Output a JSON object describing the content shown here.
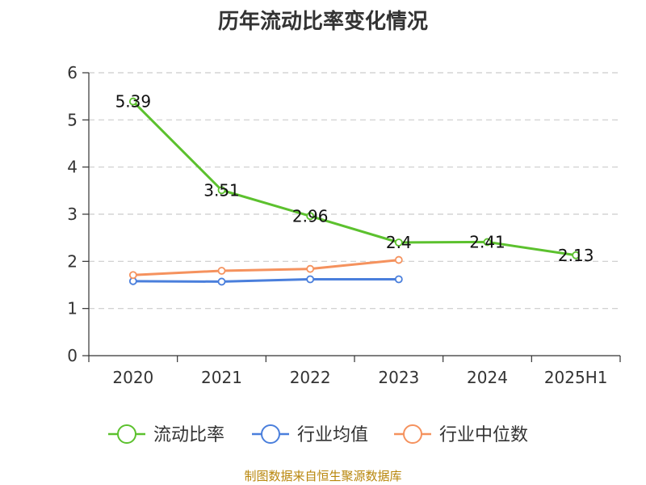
{
  "chart_data": {
    "type": "line",
    "title": "历年流动比率变化情况",
    "categories": [
      "2020",
      "2021",
      "2022",
      "2023",
      "2024",
      "2025H1"
    ],
    "ylim": [
      0,
      6
    ],
    "yticks": [
      0,
      1,
      2,
      3,
      4,
      5,
      6
    ],
    "grid": "horizontal-dashed",
    "legend_position": "bottom",
    "series": [
      {
        "name": "流动比率",
        "color": "#5cc12e",
        "values": [
          5.39,
          3.51,
          2.96,
          2.4,
          2.41,
          2.13
        ],
        "data_labels": [
          "5.39",
          "3.51",
          "2.96",
          "2.4",
          "2.41",
          "2.13"
        ]
      },
      {
        "name": "行业均值",
        "color": "#4a7fdc",
        "values": [
          1.58,
          1.57,
          1.62,
          1.62,
          null,
          null
        ]
      },
      {
        "name": "行业中位数",
        "color": "#f5925e",
        "values": [
          1.71,
          1.8,
          1.84,
          2.03,
          null,
          null
        ]
      }
    ]
  },
  "footer": {
    "source": "制图数据来自恒生聚源数据库"
  }
}
